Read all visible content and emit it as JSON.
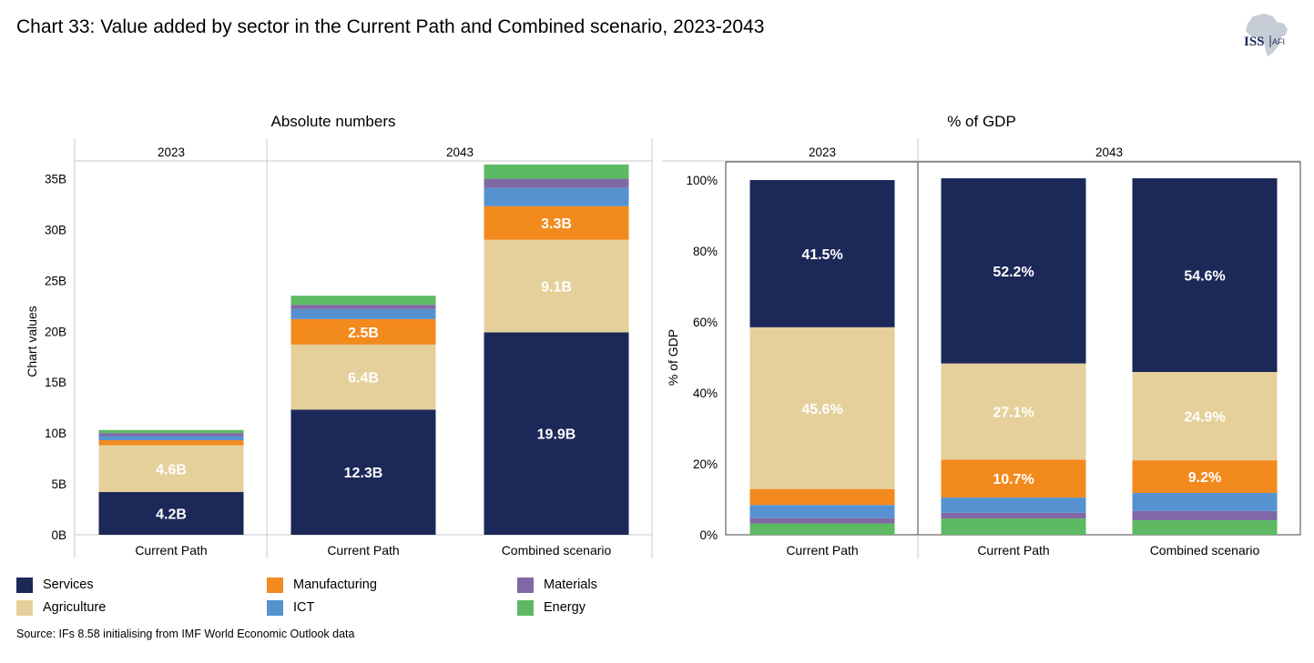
{
  "title": "Chart 33: Value added by sector in the Current Path and Combined scenario, 2023-2043",
  "logo": {
    "text_main": "ISS",
    "text_sub": "AFI"
  },
  "source": "Source: IFs 8.58 initialising from IMF World Economic Outlook data",
  "colors": {
    "Services": "#1b2858",
    "Agriculture": "#e5d09b",
    "Manufacturing": "#f28a1e",
    "ICT": "#5692cf",
    "Materials": "#8068a6",
    "Energy": "#5dba63"
  },
  "legend": [
    {
      "label": "Services",
      "color": "#1b2858"
    },
    {
      "label": "Agriculture",
      "color": "#e5d09b"
    },
    {
      "label": "Manufacturing",
      "color": "#f28a1e"
    },
    {
      "label": "ICT",
      "color": "#5692cf"
    },
    {
      "label": "Materials",
      "color": "#8068a6"
    },
    {
      "label": "Energy",
      "color": "#5dba63"
    }
  ],
  "chart_data": [
    {
      "type": "bar",
      "stacked": true,
      "title": "Absolute numbers",
      "ylabel": "Chart values",
      "ylim": [
        0,
        38
      ],
      "yticks": [
        0,
        5,
        10,
        15,
        20,
        25,
        30,
        35
      ],
      "ytick_labels": [
        "0B",
        "5B",
        "10B",
        "15B",
        "20B",
        "25B",
        "30B",
        "35B"
      ],
      "groups": [
        {
          "label": "2023",
          "categories": [
            "Current Path"
          ]
        },
        {
          "label": "2043",
          "categories": [
            "Current Path",
            "Combined scenario"
          ]
        }
      ],
      "series": [
        {
          "name": "Services",
          "values": [
            4.2,
            12.3,
            19.9
          ],
          "labels": [
            "4.2B",
            "12.3B",
            "19.9B"
          ]
        },
        {
          "name": "Agriculture",
          "values": [
            4.6,
            6.4,
            9.1
          ],
          "labels": [
            "4.6B",
            "6.4B",
            "9.1B"
          ]
        },
        {
          "name": "Manufacturing",
          "values": [
            0.5,
            2.5,
            3.3
          ],
          "labels": [
            "",
            "2.5B",
            "3.3B"
          ]
        },
        {
          "name": "ICT",
          "values": [
            0.4,
            1.0,
            1.8
          ],
          "labels": [
            "",
            "",
            ""
          ]
        },
        {
          "name": "Materials",
          "values": [
            0.3,
            0.4,
            0.9
          ],
          "labels": [
            "",
            "",
            ""
          ]
        },
        {
          "name": "Energy",
          "values": [
            0.3,
            0.9,
            1.4
          ],
          "labels": [
            "",
            "",
            ""
          ]
        }
      ]
    },
    {
      "type": "bar",
      "stacked": true,
      "title": "% of GDP",
      "ylabel": "% of GDP",
      "ylim": [
        0,
        100
      ],
      "yticks": [
        0,
        20,
        40,
        60,
        80,
        100
      ],
      "ytick_labels": [
        "0%",
        "20%",
        "40%",
        "60%",
        "80%",
        "100%"
      ],
      "groups": [
        {
          "label": "2023",
          "categories": [
            "Current Path"
          ]
        },
        {
          "label": "2043",
          "categories": [
            "Current Path",
            "Combined scenario"
          ]
        }
      ],
      "series": [
        {
          "name": "Energy",
          "values": [
            3.2,
            4.6,
            4.1
          ],
          "labels": [
            "",
            "",
            ""
          ]
        },
        {
          "name": "Materials",
          "values": [
            1.5,
            1.6,
            2.6
          ],
          "labels": [
            "",
            "",
            ""
          ]
        },
        {
          "name": "ICT",
          "values": [
            3.7,
            4.3,
            5.1
          ],
          "labels": [
            "",
            "",
            ""
          ]
        },
        {
          "name": "Manufacturing",
          "values": [
            4.5,
            10.7,
            9.2
          ],
          "labels": [
            "",
            "10.7%",
            "9.2%"
          ]
        },
        {
          "name": "Agriculture",
          "values": [
            45.6,
            27.1,
            24.9
          ],
          "labels": [
            "45.6%",
            "27.1%",
            "24.9%"
          ]
        },
        {
          "name": "Services",
          "values": [
            41.5,
            52.2,
            54.6
          ],
          "labels": [
            "41.5%",
            "52.2%",
            "54.6%"
          ]
        }
      ]
    }
  ]
}
